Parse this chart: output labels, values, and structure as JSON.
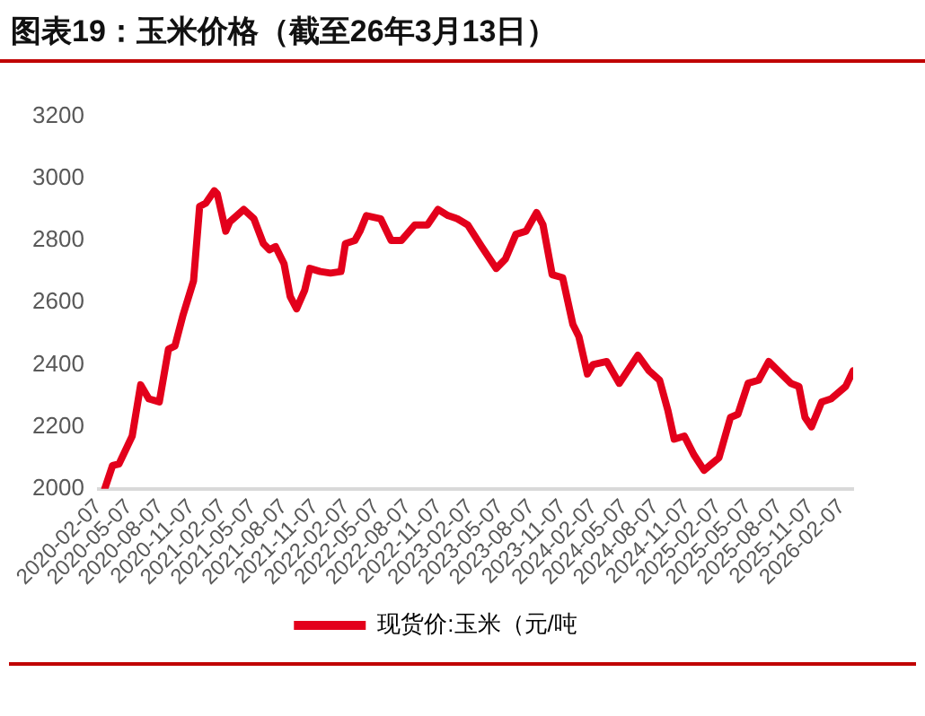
{
  "chart_data": {
    "type": "line",
    "title": "图表19：玉米价格（截至26年3月13日）",
    "x": [
      "2020-02-25",
      "2020-03-19",
      "2020-04-07",
      "2020-05-16",
      "2020-06-10",
      "2020-07-04",
      "2020-08-04",
      "2020-08-31",
      "2020-09-19",
      "2020-10-13",
      "2020-11-13",
      "2020-12-01",
      "2020-12-19",
      "2021-01-13",
      "2021-01-22",
      "2021-02-16",
      "2021-02-28",
      "2021-04-10",
      "2021-05-10",
      "2021-06-07",
      "2021-06-25",
      "2021-07-13",
      "2021-08-07",
      "2021-08-25",
      "2021-09-13",
      "2021-10-07",
      "2021-10-22",
      "2021-11-22",
      "2021-12-22",
      "2022-01-22",
      "2022-02-04",
      "2022-03-04",
      "2022-03-19",
      "2022-04-07",
      "2022-05-19",
      "2022-06-19",
      "2022-07-19",
      "2022-08-28",
      "2022-10-04",
      "2022-11-04",
      "2022-12-04",
      "2022-12-31",
      "2023-01-31",
      "2023-03-13",
      "2023-04-25",
      "2023-05-22",
      "2023-06-22",
      "2023-07-22",
      "2023-08-22",
      "2023-09-10",
      "2023-10-07",
      "2023-11-07",
      "2023-12-07",
      "2023-12-25",
      "2024-01-19",
      "2024-02-04",
      "2024-03-16",
      "2024-04-22",
      "2024-06-16",
      "2024-07-19",
      "2024-08-19",
      "2024-09-13",
      "2024-10-01",
      "2024-10-31",
      "2024-11-28",
      "2024-12-28",
      "2025-02-10",
      "2025-03-16",
      "2025-04-07",
      "2025-05-07",
      "2025-06-07",
      "2025-07-07",
      "2025-08-04",
      "2025-09-10",
      "2025-10-04",
      "2025-10-22",
      "2025-11-10",
      "2025-12-10",
      "2026-01-07",
      "2026-02-19",
      "2026-03-13"
    ],
    "series": [
      {
        "name": "现货价:玉米（元/吨",
        "color": "#e3001b",
        "values": [
          2000,
          2075,
          2080,
          2170,
          2335,
          2290,
          2280,
          2450,
          2460,
          2560,
          2670,
          2910,
          2920,
          2960,
          2950,
          2830,
          2860,
          2900,
          2870,
          2790,
          2770,
          2780,
          2725,
          2620,
          2580,
          2640,
          2710,
          2700,
          2695,
          2700,
          2790,
          2800,
          2830,
          2880,
          2870,
          2800,
          2800,
          2850,
          2850,
          2900,
          2880,
          2870,
          2850,
          2780,
          2710,
          2740,
          2820,
          2830,
          2890,
          2850,
          2690,
          2680,
          2530,
          2490,
          2370,
          2400,
          2410,
          2340,
          2430,
          2380,
          2350,
          2250,
          2160,
          2170,
          2110,
          2060,
          2100,
          2230,
          2240,
          2340,
          2350,
          2410,
          2380,
          2340,
          2330,
          2230,
          2200,
          2280,
          2290,
          2330,
          2380
        ]
      }
    ],
    "xlim": [
      "2020-02-07",
      "2026-03-13"
    ],
    "xticks": [
      "2020-02-07",
      "2020-05-07",
      "2020-08-07",
      "2020-11-07",
      "2021-02-07",
      "2021-05-07",
      "2021-08-07",
      "2021-11-07",
      "2022-02-07",
      "2022-05-07",
      "2022-08-07",
      "2022-11-07",
      "2023-02-07",
      "2023-05-07",
      "2023-08-07",
      "2023-11-07",
      "2024-02-07",
      "2024-05-07",
      "2024-08-07",
      "2024-11-07",
      "2025-02-07",
      "2025-05-07",
      "2025-08-07",
      "2025-11-07",
      "2026-02-07"
    ],
    "ylim": [
      2000,
      3200
    ],
    "yticks": [
      2000,
      2200,
      2400,
      2600,
      2800,
      3000,
      3200
    ],
    "grid": false,
    "legend": "bottom",
    "marker": "none",
    "line_style": "solid"
  }
}
